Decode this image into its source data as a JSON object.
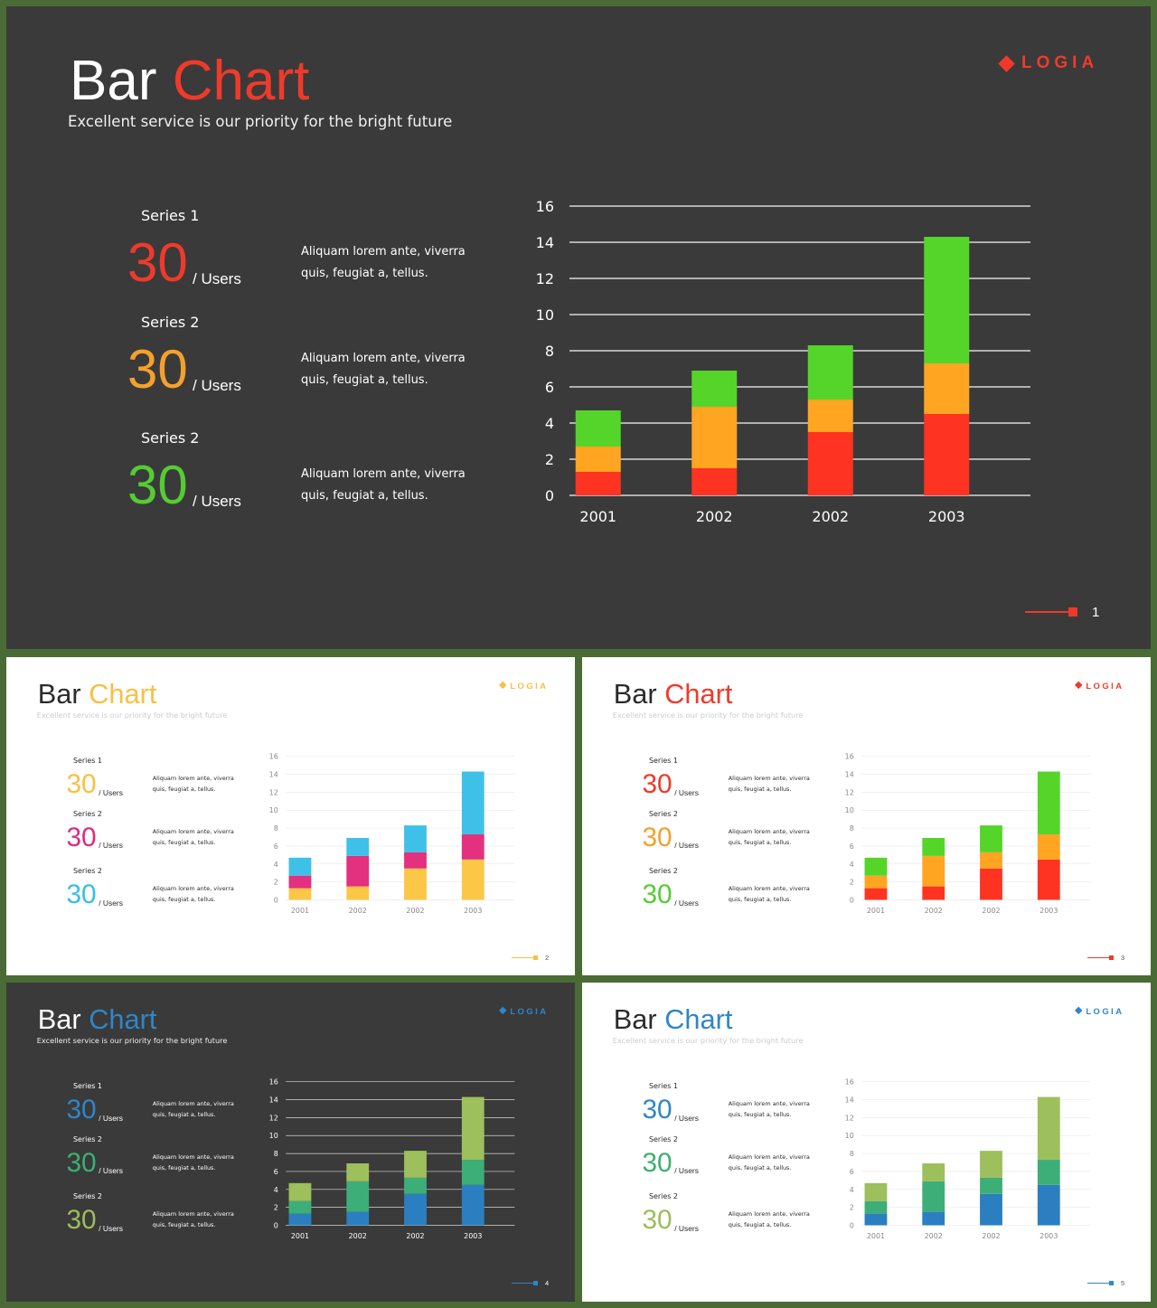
{
  "slides": [
    {
      "theme": "dark",
      "title_main": "Bar",
      "title_accent": "Chart",
      "accent": "#ef3a2b",
      "subtitle": "Excellent service is our priority for the bright future",
      "logo": "LOGIA",
      "page": "1",
      "series": [
        {
          "label": "Series 1",
          "value": "30",
          "unit": "/ Users",
          "color": "#ef3a2b",
          "desc_1": "Aliquam lorem ante, viverra",
          "desc_2": "quis, feugiat a, tellus."
        },
        {
          "label": "Series 2",
          "value": "30",
          "unit": "/ Users",
          "color": "#f4a12b",
          "desc_1": "Aliquam lorem ante, viverra",
          "desc_2": "quis, feugiat a, tellus."
        },
        {
          "label": "Series 2",
          "value": "30",
          "unit": "/ Users",
          "color": "#55cc33",
          "desc_1": "Aliquam lorem ante, viverra",
          "desc_2": "quis, feugiat a, tellus."
        }
      ],
      "bar_colors": [
        "#ff3322",
        "#ffa522",
        "#55d42a"
      ]
    },
    {
      "theme": "light",
      "title_main": "Bar",
      "title_accent": "Chart",
      "accent": "#f7c044",
      "subtitle": "Excellent service is our priority for the bright future",
      "logo": "LOGIA",
      "page": "2",
      "series": [
        {
          "label": "Series 1",
          "value": "30",
          "unit": "/ Users",
          "color": "#f7c044",
          "desc_1": "Aliquam lorem ante, viverra",
          "desc_2": "quis, feugiat a, tellus."
        },
        {
          "label": "Series 2",
          "value": "30",
          "unit": "/ Users",
          "color": "#df2a7e",
          "desc_1": "Aliquam lorem ante, viverra",
          "desc_2": "quis, feugiat a, tellus."
        },
        {
          "label": "Series 2",
          "value": "30",
          "unit": "/ Users",
          "color": "#39bde6",
          "desc_1": "Aliquam lorem ante, viverra",
          "desc_2": "quis, feugiat a, tellus."
        }
      ],
      "bar_colors": [
        "#fcc646",
        "#e3307f",
        "#3fc0e8"
      ]
    },
    {
      "theme": "light",
      "title_main": "Bar",
      "title_accent": "Chart",
      "accent": "#ef3a2b",
      "subtitle": "Excellent service is our priority for the bright future",
      "logo": "LOGIA",
      "page": "3",
      "series": [
        {
          "label": "Series 1",
          "value": "30",
          "unit": "/ Users",
          "color": "#ef3a2b",
          "desc_1": "Aliquam lorem ante, viverra",
          "desc_2": "quis, feugiat a, tellus."
        },
        {
          "label": "Series 2",
          "value": "30",
          "unit": "/ Users",
          "color": "#f4a12b",
          "desc_1": "Aliquam lorem ante, viverra",
          "desc_2": "quis, feugiat a, tellus."
        },
        {
          "label": "Series 2",
          "value": "30",
          "unit": "/ Users",
          "color": "#55cc33",
          "desc_1": "Aliquam lorem ante, viverra",
          "desc_2": "quis, feugiat a, tellus."
        }
      ],
      "bar_colors": [
        "#ff3322",
        "#ffa522",
        "#55d42a"
      ]
    },
    {
      "theme": "dark",
      "title_main": "Bar",
      "title_accent": "Chart",
      "accent": "#2f86c8",
      "subtitle": "Excellent service is our priority for the bright future",
      "logo": "LOGIA",
      "page": "4",
      "series": [
        {
          "label": "Series 1",
          "value": "30",
          "unit": "/ Users",
          "color": "#2f86c8",
          "desc_1": "Aliquam lorem ante, viverra",
          "desc_2": "quis, feugiat a, tellus."
        },
        {
          "label": "Series 2",
          "value": "30",
          "unit": "/ Users",
          "color": "#3daf72",
          "desc_1": "Aliquam lorem ante, viverra",
          "desc_2": "quis, feugiat a, tellus."
        },
        {
          "label": "Series 2",
          "value": "30",
          "unit": "/ Users",
          "color": "#9cbd5a",
          "desc_1": "Aliquam lorem ante, viverra",
          "desc_2": "quis, feugiat a, tellus."
        }
      ],
      "bar_colors": [
        "#2b7fc0",
        "#3dae78",
        "#9dbf5c"
      ]
    },
    {
      "theme": "light",
      "title_main": "Bar",
      "title_accent": "Chart",
      "accent": "#2f86c8",
      "subtitle": "Excellent service is our priority for the bright future",
      "logo": "LOGIA",
      "page": "5",
      "series": [
        {
          "label": "Series 1",
          "value": "30",
          "unit": "/ Users",
          "color": "#2f86c8",
          "desc_1": "Aliquam lorem ante, viverra",
          "desc_2": "quis, feugiat a, tellus."
        },
        {
          "label": "Series 2",
          "value": "30",
          "unit": "/ Users",
          "color": "#3daf72",
          "desc_1": "Aliquam lorem ante, viverra",
          "desc_2": "quis, feugiat a, tellus."
        },
        {
          "label": "Series 2",
          "value": "30",
          "unit": "/ Users",
          "color": "#9cbd5a",
          "desc_1": "Aliquam lorem ante, viverra",
          "desc_2": "quis, feugiat a, tellus."
        }
      ],
      "bar_colors": [
        "#2b7fc0",
        "#3dae78",
        "#9dbf5c"
      ]
    }
  ],
  "chart_data": {
    "type": "bar",
    "stacked": true,
    "categories": [
      "2001",
      "2002",
      "2002",
      "2003"
    ],
    "series": [
      {
        "values": [
          1.3,
          1.5,
          3.5,
          4.5
        ]
      },
      {
        "values": [
          1.4,
          3.4,
          1.8,
          2.8
        ]
      },
      {
        "values": [
          2.0,
          2.0,
          3.0,
          7.0
        ]
      }
    ],
    "ylim": [
      0,
      16
    ],
    "yticks": [
      0,
      2,
      4,
      6,
      8,
      10,
      12,
      14,
      16
    ],
    "grid": true,
    "legend": "none"
  }
}
